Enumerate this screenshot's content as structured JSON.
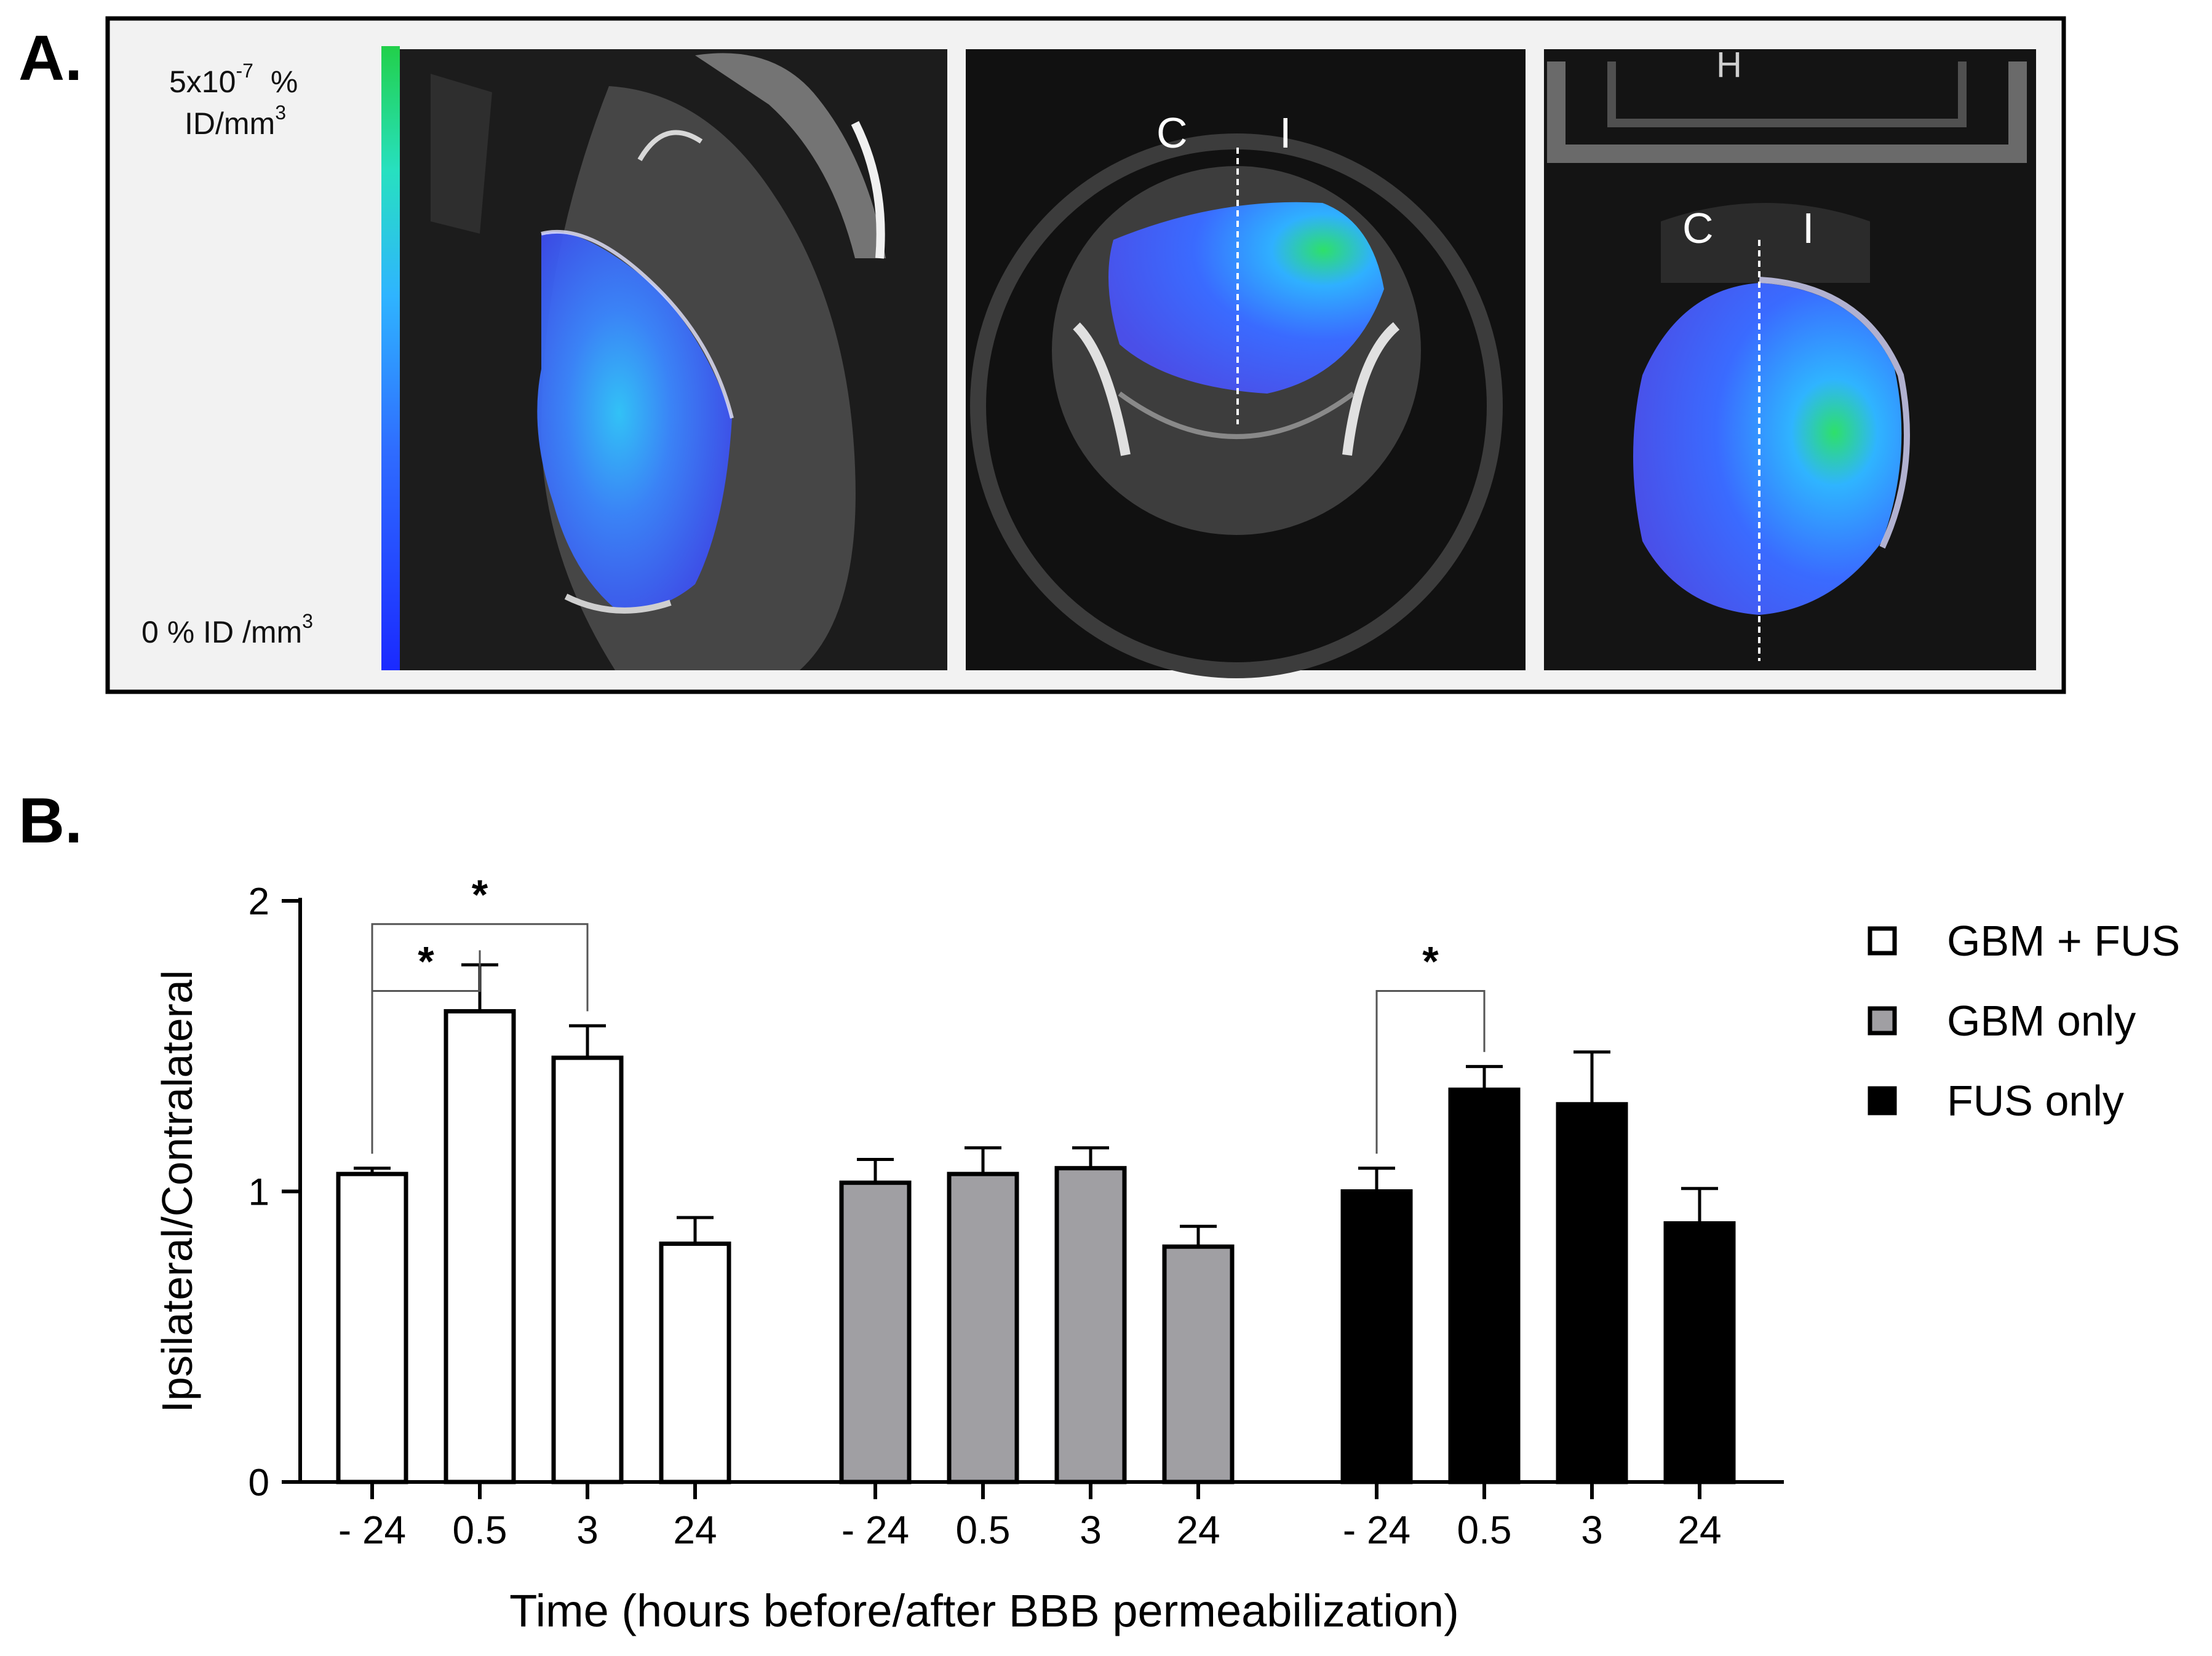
{
  "panel_a": {
    "label": "A.",
    "scale_top_value": "5x10",
    "scale_top_exp": "-7",
    "scale_top_unit": "%",
    "scale_top_line2": "ID/mm",
    "scale_top_line2_exp": "3",
    "scale_bottom": "0 % ID /mm",
    "scale_bottom_exp": "3",
    "colormap": [
      "#1a2aff",
      "#2f55ff",
      "#2fa8ff",
      "#27e0c0",
      "#22d04a"
    ],
    "axial_labels": {
      "contra": "C",
      "ipsi": "I"
    },
    "coronal_labels": {
      "contra": "C",
      "ipsi": "I",
      "top": "H"
    }
  },
  "panel_b_label": "B.",
  "chart_data": {
    "type": "bar",
    "title": "",
    "ylabel": "Ipsilateral/Contralateral",
    "xlabel": "Time (hours before/after BBB permeabilization)",
    "ylim": [
      0,
      2
    ],
    "yticks": [
      0,
      1,
      2
    ],
    "categories": [
      "- 24",
      "0.5",
      "3",
      "24"
    ],
    "series": [
      {
        "name": "GBM + FUS",
        "color": "#ffffff",
        "values": [
          1.06,
          1.62,
          1.46,
          0.82
        ],
        "errors": [
          0.02,
          0.16,
          0.11,
          0.09
        ]
      },
      {
        "name": "GBM only",
        "color": "#a09fa3",
        "values": [
          1.03,
          1.06,
          1.08,
          0.81
        ],
        "errors": [
          0.08,
          0.09,
          0.07,
          0.07
        ]
      },
      {
        "name": "FUS only",
        "color": "#000000",
        "values": [
          1.0,
          1.35,
          1.3,
          0.89
        ],
        "errors": [
          0.08,
          0.08,
          0.18,
          0.12
        ]
      }
    ],
    "significance": [
      {
        "series": 0,
        "from": 0,
        "to": 2,
        "level": 1.92,
        "label": "*"
      },
      {
        "series": 0,
        "from": 0,
        "to": 1,
        "level": 1.69,
        "label": "*"
      },
      {
        "series": 2,
        "from": 0,
        "to": 1,
        "level": 1.69,
        "label": "*"
      }
    ],
    "legend_position": "right"
  }
}
